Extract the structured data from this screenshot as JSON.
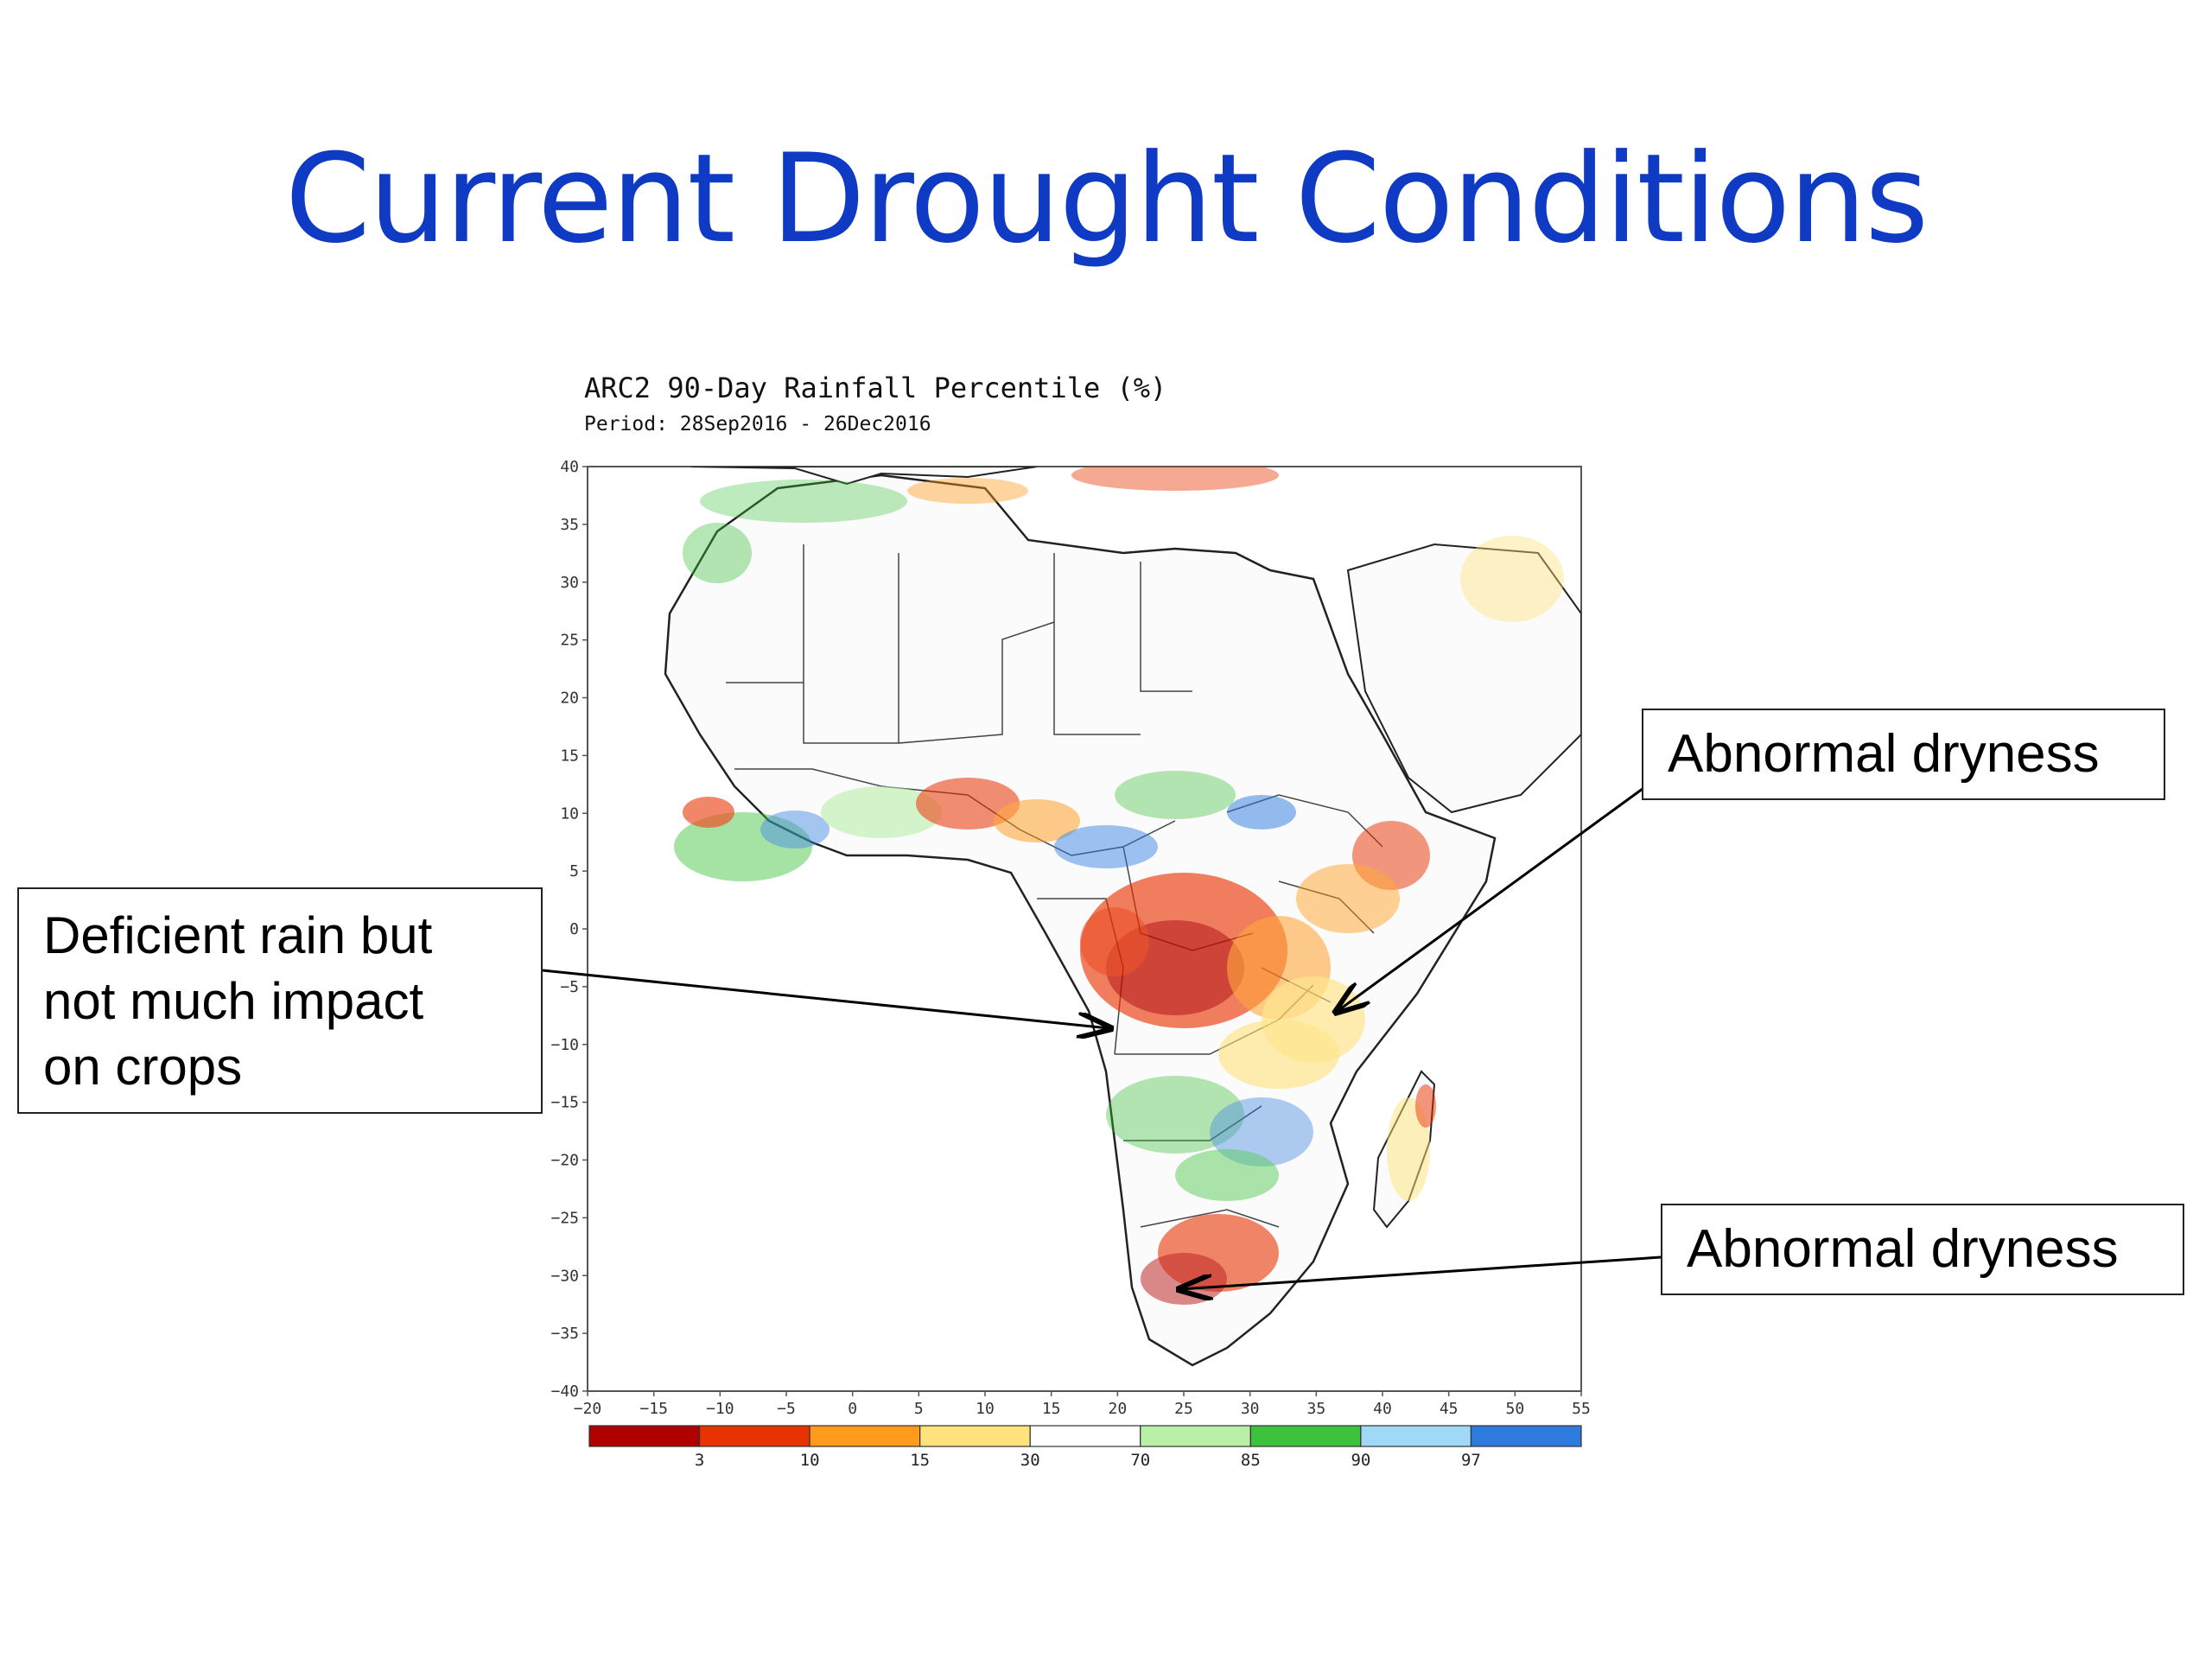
{
  "slide": {
    "title": "Current Drought Conditions"
  },
  "map": {
    "title": "ARC2 90-Day Rainfall Percentile (%)",
    "period": "Period: 28Sep2016 - 26Dec2016",
    "lat_ticks": [
      "40",
      "35",
      "30",
      "25",
      "20",
      "15",
      "10",
      "5",
      "0",
      "−5",
      "−10",
      "−15",
      "−20",
      "−25",
      "−30",
      "−35",
      "−40"
    ],
    "lon_ticks": [
      "−20",
      "−15",
      "−10",
      "−5",
      "0",
      "5",
      "10",
      "15",
      "20",
      "25",
      "30",
      "35",
      "40",
      "45",
      "50",
      "55"
    ],
    "colorbar": {
      "colors": [
        "#b00000",
        "#e83300",
        "#ff9a1a",
        "#ffe27a",
        "#ffffff",
        "#b8f0a8",
        "#3cc23c",
        "#a0d8f8",
        "#2e7be0"
      ],
      "labels": [
        "3",
        "10",
        "15",
        "30",
        "70",
        "85",
        "90",
        "97"
      ]
    }
  },
  "callouts": {
    "left": {
      "lines": [
        "Deficient rain but",
        "not much impact",
        "on crops"
      ]
    },
    "right_top": {
      "text": "Abnormal dryness"
    },
    "right_bottom": {
      "text": "Abnormal dryness"
    }
  }
}
